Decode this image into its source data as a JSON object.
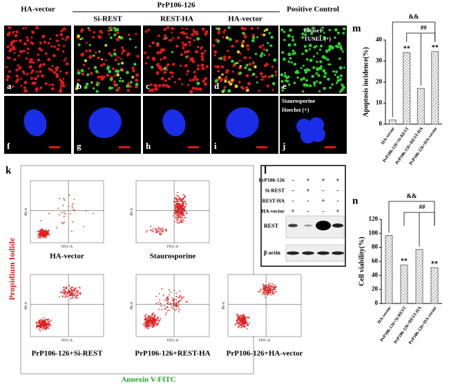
{
  "header": {
    "group_label": "PrP106-126",
    "columns": [
      "HA-vector",
      "Si-REST",
      "REST-HA",
      "HA-vector",
      "Positive Control"
    ]
  },
  "image_panels": {
    "row1_letters": [
      "a",
      "b",
      "c",
      "d",
      "e"
    ],
    "row2_letters": [
      "f",
      "g",
      "h",
      "i",
      "j"
    ],
    "tunel_label": [
      "DNase1",
      "TUNEL (+)"
    ],
    "hoechst_label": [
      "Staurosporine",
      "Hoechst (+)"
    ]
  },
  "panel_letters": [
    "k",
    "l",
    "m",
    "n"
  ],
  "flow": {
    "plot_labels": [
      "HA-vector",
      "Staurosporine",
      "PrP106-126+Si-REST",
      "PrP106-126+REST-HA",
      "PrP106-126+HA-vector"
    ],
    "plot_x_axis": "FITC-A",
    "plot_y_axis": "PE-A",
    "y_title": "Propidium Iodide",
    "x_title": "Annexin V-FITC"
  },
  "blot": {
    "rows": [
      {
        "label": "PrP106-126",
        "signs": [
          "-",
          "+",
          "+",
          "+"
        ]
      },
      {
        "label": "Si-REST",
        "signs": [
          "-",
          "+",
          "-",
          "-"
        ]
      },
      {
        "label": "REST-HA",
        "signs": [
          "-",
          "-",
          "+",
          "-"
        ]
      },
      {
        "label": "HA-vector",
        "signs": [
          "+",
          "-",
          "-",
          "+"
        ]
      }
    ],
    "bands": [
      "REST",
      "β-actin"
    ]
  },
  "chart_data": [
    {
      "type": "bar",
      "y_label": "Apoptosis incidence(%)",
      "categories": [
        "HA-vector",
        "PrP106-126+Si-REST",
        "PrP106-126+REST-HA",
        "PrP106-126+HA-vector"
      ],
      "values": [
        2,
        34,
        17,
        34.5
      ],
      "significance": [
        null,
        "**",
        null,
        "**"
      ],
      "brackets": [
        "&&",
        "##"
      ],
      "color": "#555555",
      "ylim": [
        0,
        40
      ],
      "yticks": [
        0,
        10,
        20,
        30,
        40
      ]
    },
    {
      "type": "bar",
      "y_label": "Cell viability(%)",
      "categories": [
        "HA-vector",
        "PrP106-126+Si-REST",
        "PrP106-126+REST-HA",
        "PrP106-126+HA-vector"
      ],
      "values": [
        97,
        55,
        77,
        51
      ],
      "significance": [
        null,
        "**",
        null,
        "**"
      ],
      "brackets": [
        "&&",
        "##"
      ],
      "color": "#555555",
      "ylim": [
        0,
        120
      ],
      "yticks": [
        0,
        20,
        40,
        60,
        80,
        100,
        120
      ]
    }
  ]
}
